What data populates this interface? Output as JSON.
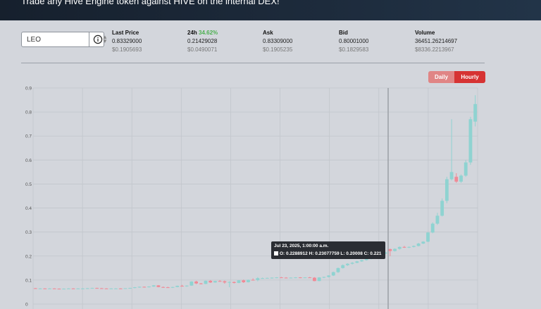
{
  "header": {
    "subtitle": "Trade any Hive Engine token against HIVE on the internal DEX!"
  },
  "token_select": {
    "value": "LEO"
  },
  "stats": [
    {
      "label": "Last Price",
      "value": "0.83329000",
      "usd": "$0.1905693"
    },
    {
      "label": "24h",
      "change": "34.62%",
      "value": "0.21429028",
      "usd": "$0.0490071"
    },
    {
      "label": "Ask",
      "value": "0.83309000",
      "usd": "$0.1905235"
    },
    {
      "label": "Bid",
      "value": "0.80001000",
      "usd": "$0.1829583"
    },
    {
      "label": "Volume",
      "value": "36451.26214697",
      "usd": "$8336.2213967"
    }
  ],
  "range_buttons": {
    "daily": "Daily",
    "hourly": "Hourly",
    "active": "Hourly"
  },
  "colors": {
    "up": "#8fd3d1",
    "down": "#f08a96",
    "accent": "#d63333",
    "positive": "#4caf50"
  },
  "tooltip": {
    "date": "Jul 23, 2025, 1:00:00 a.m.",
    "ohlc": "O: 0.2288912  H: 0.23077759  L: 0.20008  C: 0.221"
  },
  "chart_data": {
    "type": "candlestick",
    "title": "",
    "xlabel": "",
    "ylabel": "",
    "ylim": [
      0,
      0.9
    ],
    "yticks": [
      "0",
      "0.1",
      "0.2",
      "0.3",
      "0.4",
      "0.5",
      "0.6",
      "0.7",
      "0.8",
      "0.9"
    ],
    "grid": true,
    "candles": [
      [
        0.066,
        0.067,
        0.064,
        0.065
      ],
      [
        0.065,
        0.066,
        0.064,
        0.065
      ],
      [
        0.065,
        0.066,
        0.063,
        0.064
      ],
      [
        0.064,
        0.066,
        0.063,
        0.065
      ],
      [
        0.065,
        0.066,
        0.063,
        0.064
      ],
      [
        0.064,
        0.065,
        0.062,
        0.063
      ],
      [
        0.063,
        0.065,
        0.062,
        0.064
      ],
      [
        0.064,
        0.066,
        0.063,
        0.065
      ],
      [
        0.065,
        0.066,
        0.063,
        0.064
      ],
      [
        0.064,
        0.066,
        0.063,
        0.065
      ],
      [
        0.065,
        0.066,
        0.064,
        0.065
      ],
      [
        0.065,
        0.067,
        0.064,
        0.066
      ],
      [
        0.066,
        0.068,
        0.065,
        0.067
      ],
      [
        0.067,
        0.068,
        0.065,
        0.066
      ],
      [
        0.066,
        0.067,
        0.064,
        0.065
      ],
      [
        0.065,
        0.066,
        0.063,
        0.064
      ],
      [
        0.064,
        0.066,
        0.063,
        0.065
      ],
      [
        0.065,
        0.066,
        0.064,
        0.065
      ],
      [
        0.065,
        0.066,
        0.063,
        0.064
      ],
      [
        0.064,
        0.066,
        0.063,
        0.066
      ],
      [
        0.066,
        0.068,
        0.065,
        0.067
      ],
      [
        0.067,
        0.071,
        0.066,
        0.07
      ],
      [
        0.07,
        0.073,
        0.068,
        0.072
      ],
      [
        0.072,
        0.073,
        0.069,
        0.07
      ],
      [
        0.07,
        0.074,
        0.069,
        0.073
      ],
      [
        0.073,
        0.079,
        0.072,
        0.078
      ],
      [
        0.078,
        0.079,
        0.07,
        0.071
      ],
      [
        0.071,
        0.073,
        0.068,
        0.07
      ],
      [
        0.07,
        0.072,
        0.068,
        0.069
      ],
      [
        0.069,
        0.072,
        0.067,
        0.071
      ],
      [
        0.071,
        0.077,
        0.07,
        0.076
      ],
      [
        0.076,
        0.08,
        0.073,
        0.074
      ],
      [
        0.074,
        0.078,
        0.072,
        0.077
      ],
      [
        0.077,
        0.095,
        0.076,
        0.094
      ],
      [
        0.094,
        0.097,
        0.083,
        0.086
      ],
      [
        0.086,
        0.088,
        0.082,
        0.084
      ],
      [
        0.084,
        0.098,
        0.083,
        0.097
      ],
      [
        0.097,
        0.1,
        0.088,
        0.09
      ],
      [
        0.09,
        0.097,
        0.089,
        0.096
      ],
      [
        0.096,
        0.1,
        0.093,
        0.095
      ],
      [
        0.095,
        0.098,
        0.085,
        0.09
      ],
      [
        0.09,
        0.095,
        0.07,
        0.092
      ],
      [
        0.092,
        0.094,
        0.086,
        0.088
      ],
      [
        0.088,
        0.1,
        0.087,
        0.099
      ],
      [
        0.099,
        0.102,
        0.088,
        0.091
      ],
      [
        0.091,
        0.102,
        0.09,
        0.101
      ],
      [
        0.101,
        0.107,
        0.099,
        0.1
      ],
      [
        0.1,
        0.112,
        0.095,
        0.108
      ],
      [
        0.108,
        0.11,
        0.106,
        0.108
      ],
      [
        0.108,
        0.11,
        0.107,
        0.109
      ],
      [
        0.109,
        0.111,
        0.106,
        0.11
      ],
      [
        0.11,
        0.112,
        0.108,
        0.111
      ],
      [
        0.111,
        0.113,
        0.109,
        0.11
      ],
      [
        0.11,
        0.112,
        0.107,
        0.108
      ],
      [
        0.108,
        0.111,
        0.107,
        0.11
      ],
      [
        0.11,
        0.112,
        0.108,
        0.111
      ],
      [
        0.111,
        0.112,
        0.108,
        0.109
      ],
      [
        0.109,
        0.112,
        0.108,
        0.111
      ],
      [
        0.111,
        0.113,
        0.109,
        0.11
      ],
      [
        0.11,
        0.112,
        0.095,
        0.096
      ],
      [
        0.096,
        0.112,
        0.095,
        0.111
      ],
      [
        0.111,
        0.114,
        0.108,
        0.113
      ],
      [
        0.113,
        0.12,
        0.111,
        0.119
      ],
      [
        0.119,
        0.135,
        0.117,
        0.133
      ],
      [
        0.133,
        0.152,
        0.13,
        0.15
      ],
      [
        0.15,
        0.165,
        0.148,
        0.162
      ],
      [
        0.162,
        0.17,
        0.159,
        0.168
      ],
      [
        0.168,
        0.175,
        0.165,
        0.172
      ],
      [
        0.172,
        0.18,
        0.17,
        0.178
      ],
      [
        0.178,
        0.185,
        0.176,
        0.183
      ],
      [
        0.183,
        0.19,
        0.181,
        0.188
      ],
      [
        0.188,
        0.197,
        0.186,
        0.195
      ],
      [
        0.195,
        0.205,
        0.193,
        0.202
      ],
      [
        0.202,
        0.212,
        0.2,
        0.21
      ],
      [
        0.21,
        0.218,
        0.207,
        0.215
      ],
      [
        0.229,
        0.231,
        0.2,
        0.221
      ],
      [
        0.221,
        0.232,
        0.219,
        0.23
      ],
      [
        0.23,
        0.24,
        0.227,
        0.238
      ],
      [
        0.238,
        0.242,
        0.234,
        0.236
      ],
      [
        0.236,
        0.24,
        0.233,
        0.238
      ],
      [
        0.238,
        0.244,
        0.236,
        0.242
      ],
      [
        0.242,
        0.255,
        0.24,
        0.252
      ],
      [
        0.252,
        0.262,
        0.25,
        0.26
      ],
      [
        0.26,
        0.3,
        0.258,
        0.298
      ],
      [
        0.298,
        0.34,
        0.295,
        0.335
      ],
      [
        0.335,
        0.38,
        0.33,
        0.368
      ],
      [
        0.368,
        0.44,
        0.365,
        0.43
      ],
      [
        0.43,
        0.53,
        0.42,
        0.52
      ],
      [
        0.52,
        0.77,
        0.515,
        0.55
      ],
      [
        0.53,
        0.545,
        0.505,
        0.51
      ],
      [
        0.51,
        0.54,
        0.505,
        0.535
      ],
      [
        0.535,
        0.6,
        0.53,
        0.59
      ],
      [
        0.59,
        0.78,
        0.58,
        0.77
      ],
      [
        0.76,
        0.87,
        0.74,
        0.833
      ]
    ]
  }
}
